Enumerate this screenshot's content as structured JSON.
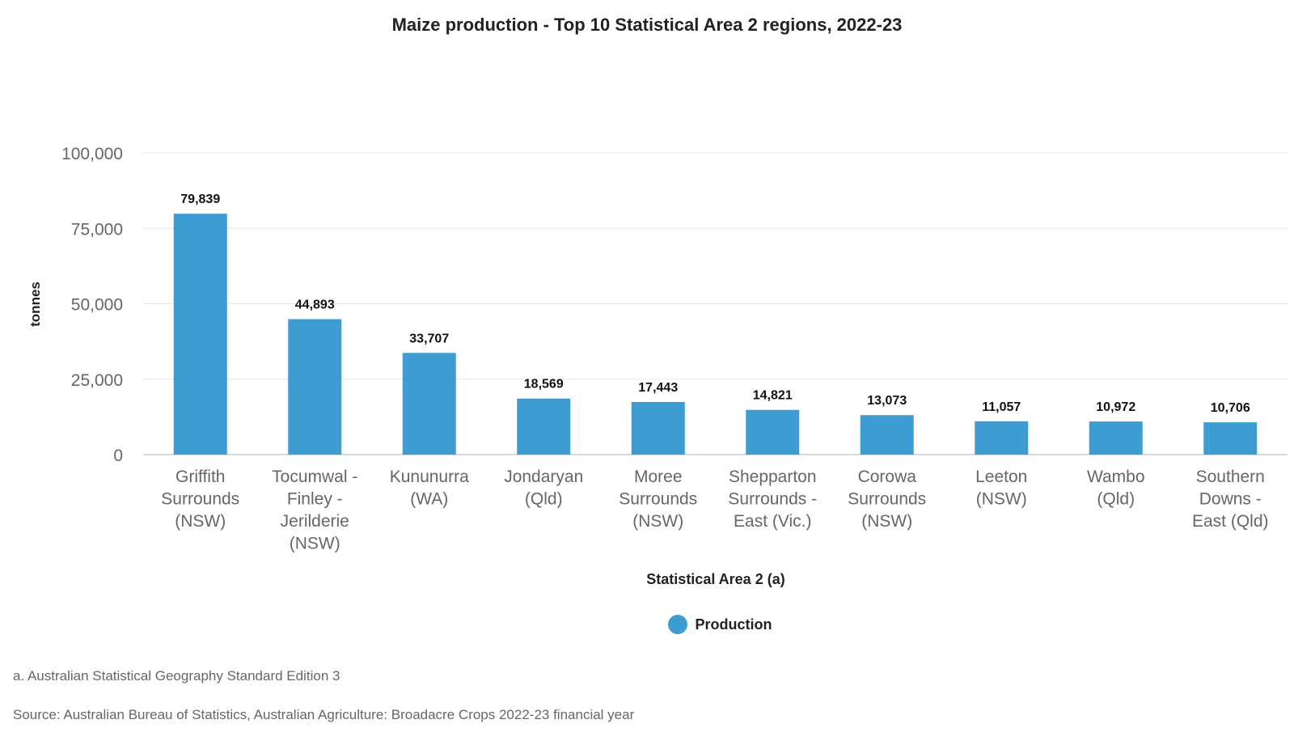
{
  "colors": {
    "bar": "#3d9dd3",
    "grid": "#e2e6ea",
    "axis": "#c9ced3"
  },
  "notes": {
    "a": "a. Australian Statistical Geography Standard Edition 3",
    "source": "Source: Australian Bureau of Statistics, Australian Agriculture: Broadacre Crops 2022-23 financial year"
  },
  "chart_data": {
    "type": "bar",
    "title": "Maize production - Top 10 Statistical Area 2 regions, 2022-23",
    "xlabel": "Statistical Area 2 (a)",
    "ylabel": "tonnes",
    "ylim": [
      0,
      100000
    ],
    "yticks": [
      0,
      25000,
      50000,
      75000,
      100000
    ],
    "ytick_labels": [
      "0",
      "25,000",
      "50,000",
      "75,000",
      "100,000"
    ],
    "grid": true,
    "legend_position": "bottom",
    "categories": [
      [
        "Griffith",
        "Surrounds",
        "(NSW)"
      ],
      [
        "Tocumwal -",
        "Finley -",
        "Jerilderie",
        "(NSW)"
      ],
      [
        "Kununurra",
        "(WA)"
      ],
      [
        "Jondaryan",
        "(Qld)"
      ],
      [
        "Moree",
        "Surrounds",
        "(NSW)"
      ],
      [
        "Shepparton",
        "Surrounds -",
        "East (Vic.)"
      ],
      [
        "Corowa",
        "Surrounds",
        "(NSW)"
      ],
      [
        "Leeton",
        "(NSW)"
      ],
      [
        "Wambo",
        "(Qld)"
      ],
      [
        "Southern",
        "Downs -",
        "East (Qld)"
      ]
    ],
    "series": [
      {
        "name": "Production",
        "values": [
          79839,
          44893,
          33707,
          18569,
          17443,
          14821,
          13073,
          11057,
          10972,
          10706
        ],
        "value_labels": [
          "79,839",
          "44,893",
          "33,707",
          "18,569",
          "17,443",
          "14,821",
          "13,073",
          "11,057",
          "10,972",
          "10,706"
        ]
      }
    ]
  }
}
